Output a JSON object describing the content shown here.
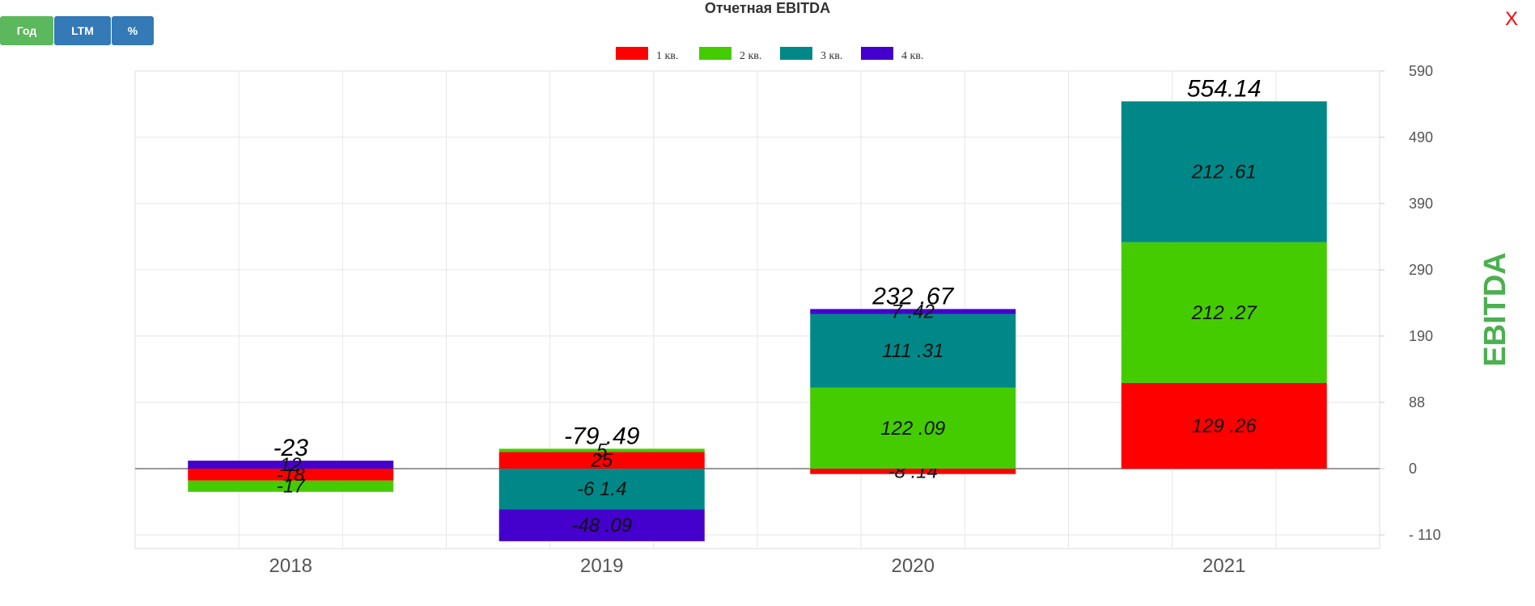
{
  "header": {
    "title": "Отчетная EBITDA",
    "close_label": "X"
  },
  "buttons": {
    "year": "Год",
    "ltm": "LTM",
    "percent": "%"
  },
  "colors": {
    "q1": "#ff0000",
    "q2": "#44cc00",
    "q3": "#008888",
    "q4": "#4400cc",
    "btn_active": "#5cb85c",
    "btn_default": "#337ab7",
    "axis_title": "#4caf50"
  },
  "chart_data": {
    "type": "bar",
    "stacked": true,
    "categories": [
      "2018",
      "2019",
      "2020",
      "2021"
    ],
    "series": [
      {
        "name": "1 кв.",
        "values": [
          -18,
          25,
          -8.14,
          129.26
        ],
        "labels": [
          "-18",
          "25",
          "-8 .14",
          "129 .26"
        ]
      },
      {
        "name": "2 кв.",
        "values": [
          -17,
          5,
          122.09,
          212.27
        ],
        "labels": [
          "-17",
          "5",
          "122 .09",
          "212 .27"
        ]
      },
      {
        "name": "3 кв.",
        "values": [
          0,
          -61.4,
          111.31,
          212.61
        ],
        "labels": [
          "",
          "-6 1.4",
          "111 .31",
          "212 .61"
        ]
      },
      {
        "name": "4 кв.",
        "values": [
          12,
          -48.09,
          7.42,
          0
        ],
        "labels": [
          "12",
          "-48 .09",
          "7 .42",
          ""
        ]
      }
    ],
    "totals": [
      "-23",
      "-79 .49",
      "232 .67",
      "554.14"
    ],
    "y_ticks": [
      "- 110",
      "0",
      "88",
      "190",
      "290",
      "390",
      "490",
      "590"
    ],
    "ylabel": "EBITDA",
    "ylim": [
      -120,
      600
    ],
    "grid": true,
    "legend_position": "top-center"
  }
}
